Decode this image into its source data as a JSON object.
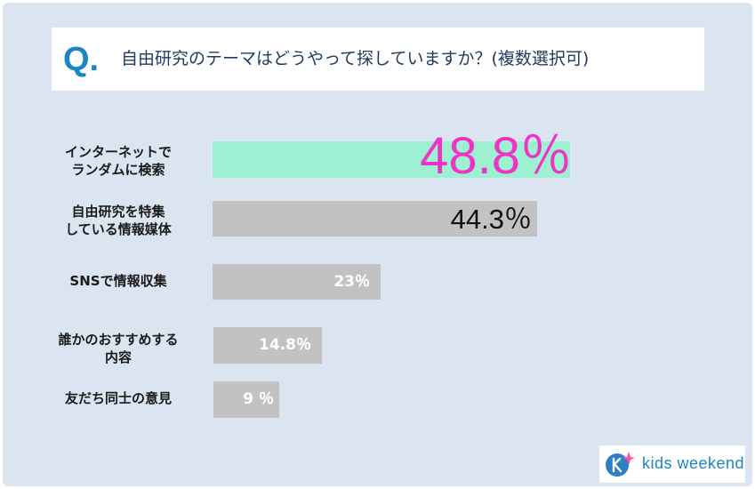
{
  "question": {
    "mark": "Q.",
    "text": "自由研究のテーマはどうやって探していますか？(複数選択可)"
  },
  "chart_data": {
    "type": "bar",
    "orientation": "horizontal",
    "categories": [
      "インターネットで\nランダムに検索",
      "自由研究を特集\nしている情報媒体",
      "SNSで情報収集",
      "誰かのおすすめする\n内容",
      "友だち同士の意見"
    ],
    "values": [
      48.8,
      44.3,
      23,
      14.8,
      9
    ],
    "value_labels": [
      "48.8％",
      "44.3％",
      "23％",
      "14.8％",
      "9 ％"
    ],
    "highlight_index": 0,
    "colors": {
      "highlight": "#9ef0d2",
      "default": "#c2c2c2",
      "highlight_text": "#f033c6",
      "second_text": "#111111",
      "default_text": "#ffffff"
    }
  },
  "logo": {
    "text": "kids weekend",
    "icon": "kids-weekend-logo-icon"
  }
}
